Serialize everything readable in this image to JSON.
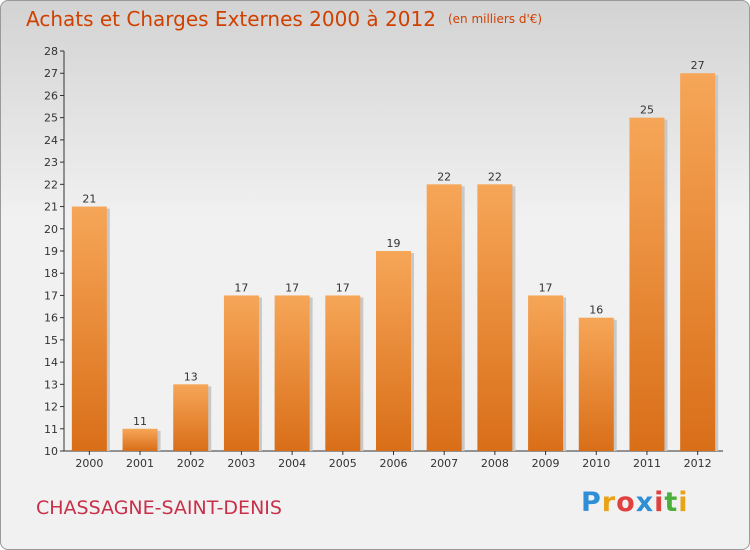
{
  "header": {
    "title": "Achats et Charges Externes 2000 à 2012",
    "unit": "(en milliers d'€)"
  },
  "footer": {
    "commune": "CHASSAGNE-SAINT-DENIS",
    "brand_letters": [
      "P",
      "r",
      "o",
      "x",
      "i",
      "t",
      "i"
    ],
    "brand_colors": [
      "#2f8fd6",
      "#e8a317",
      "#e04040",
      "#2f8fd6",
      "#e04040",
      "#4caf3b",
      "#e8a317"
    ]
  },
  "chart_data": {
    "type": "bar",
    "title": "Achats et Charges Externes 2000 à 2012",
    "categories": [
      "2000",
      "2001",
      "2002",
      "2003",
      "2004",
      "2005",
      "2006",
      "2007",
      "2008",
      "2009",
      "2010",
      "2011",
      "2012"
    ],
    "values": [
      21,
      11,
      13,
      17,
      17,
      17,
      19,
      22,
      22,
      17,
      16,
      25,
      27
    ],
    "ylim": [
      10,
      28
    ],
    "yticks": [
      10,
      11,
      12,
      13,
      14,
      15,
      16,
      17,
      18,
      19,
      20,
      21,
      22,
      23,
      24,
      25,
      26,
      27,
      28
    ],
    "grid": false,
    "bar_color": "#f0a050"
  }
}
